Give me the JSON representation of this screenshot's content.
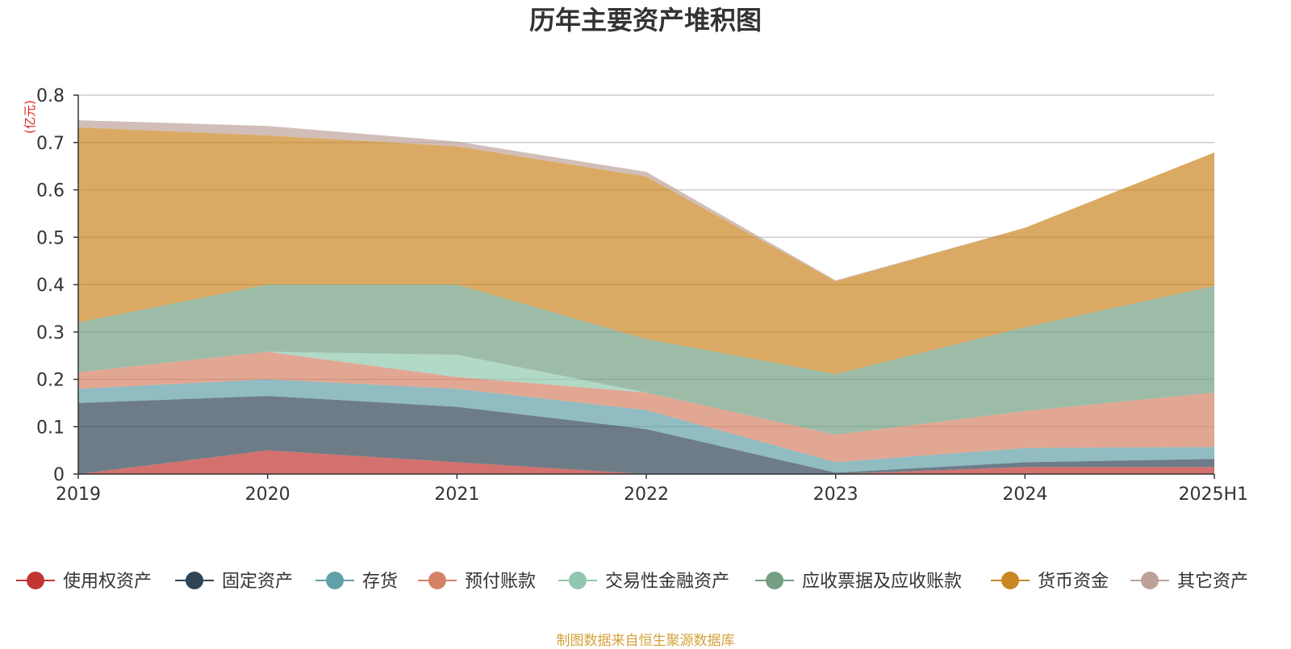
{
  "chart_data": {
    "type": "area",
    "stacked": true,
    "title": "历年主要资产堆积图",
    "y_unit": "(亿元)",
    "xlabel": "",
    "ylabel": "",
    "ylim": [
      0,
      0.8
    ],
    "y_ticks": [
      "0",
      "0.1",
      "0.2",
      "0.3",
      "0.4",
      "0.5",
      "0.6",
      "0.7",
      "0.8"
    ],
    "categories": [
      "2019",
      "2020",
      "2021",
      "2022",
      "2023",
      "2024",
      "2025H1"
    ],
    "grid": true,
    "legend_position": "bottom",
    "series": [
      {
        "name": "使用权资产",
        "color": "#c23531",
        "values": [
          0,
          0.05,
          0.025,
          0,
          0,
          0.015,
          0.015
        ]
      },
      {
        "name": "固定资产",
        "color": "#2f4554",
        "values": [
          0.15,
          0.115,
          0.117,
          0.095,
          0.003,
          0.01,
          0.017
        ]
      },
      {
        "name": "存货",
        "color": "#61a0a8",
        "values": [
          0.03,
          0.035,
          0.038,
          0.04,
          0.022,
          0.03,
          0.025
        ]
      },
      {
        "name": "预付账款",
        "color": "#d48265",
        "values": [
          0.035,
          0.058,
          0.025,
          0.037,
          0.058,
          0.078,
          0.115
        ]
      },
      {
        "name": "交易性金融资产",
        "color": "#91c7ae",
        "values": [
          0,
          0,
          0.047,
          0,
          0,
          0,
          0
        ]
      },
      {
        "name": "应收票据及应收账款",
        "color": "#749f83",
        "values": [
          0.105,
          0.142,
          0.148,
          0.113,
          0.128,
          0.177,
          0.225
        ]
      },
      {
        "name": "货币资金",
        "color": "#ca8622",
        "values": [
          0.412,
          0.315,
          0.292,
          0.343,
          0.196,
          0.21,
          0.282
        ]
      },
      {
        "name": "其它资产",
        "color": "#bda29a",
        "values": [
          0.015,
          0.02,
          0.01,
          0.01,
          0.002,
          0,
          0
        ]
      }
    ],
    "source": "制图数据来自恒生聚源数据库"
  }
}
